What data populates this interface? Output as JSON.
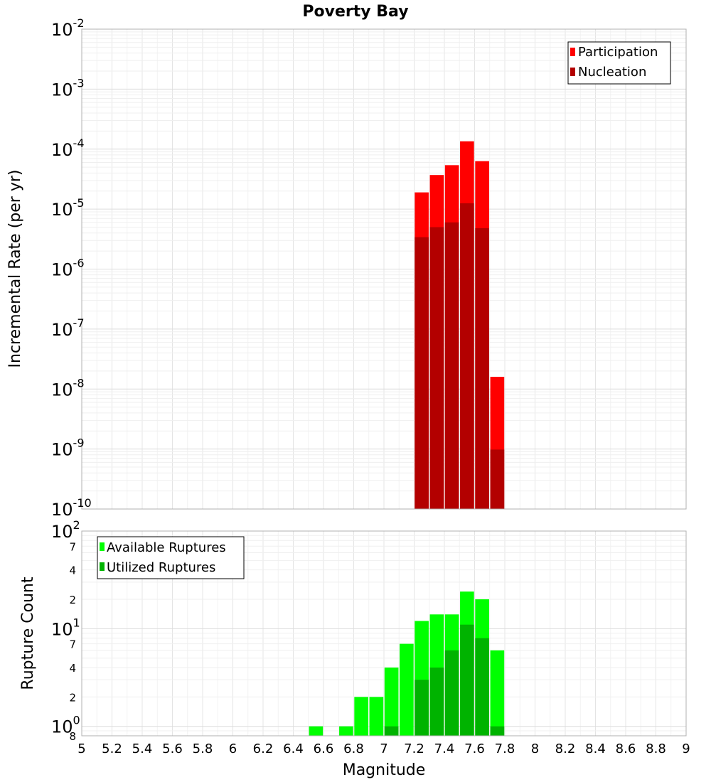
{
  "chart_data": [
    {
      "type": "bar",
      "title": "Poverty Bay",
      "xlabel": "",
      "ylabel": "Incremental Rate (per yr)",
      "xlim": [
        5,
        9
      ],
      "ylim": [
        1e-10,
        0.01
      ],
      "yscale": "log",
      "grid": true,
      "legend_position": "top-right",
      "colors": {
        "Participation": "#ff0000",
        "Nucleation": "#b30000"
      },
      "x": [
        7.25,
        7.35,
        7.45,
        7.55,
        7.65,
        7.75
      ],
      "series": [
        {
          "name": "Participation",
          "values": [
            1.9e-05,
            3.7e-05,
            5.4e-05,
            0.000135,
            6.3e-05,
            1.6e-08
          ]
        },
        {
          "name": "Nucleation",
          "values": [
            3.4e-06,
            5e-06,
            6e-06,
            1.25e-05,
            4.8e-06,
            9.8e-10
          ]
        }
      ],
      "y_ticks": [
        {
          "base": "10",
          "exp": "-2",
          "value": 0.01
        },
        {
          "base": "10",
          "exp": "-3",
          "value": 0.001
        },
        {
          "base": "10",
          "exp": "-4",
          "value": 0.0001
        },
        {
          "base": "10",
          "exp": "-5",
          "value": 1e-05
        },
        {
          "base": "10",
          "exp": "-6",
          "value": 1e-06
        },
        {
          "base": "10",
          "exp": "-7",
          "value": 1e-07
        },
        {
          "base": "10",
          "exp": "-8",
          "value": 1e-08
        },
        {
          "base": "10",
          "exp": "-9",
          "value": 1e-09
        },
        {
          "base": "10",
          "exp": "-10",
          "value": 1e-10
        }
      ]
    },
    {
      "type": "bar",
      "title": "",
      "xlabel": "Magnitude",
      "ylabel": "Rupture Count",
      "xlim": [
        5,
        9
      ],
      "ylim": [
        0.8,
        100
      ],
      "yscale": "log",
      "grid": true,
      "legend_position": "top-left",
      "colors": {
        "Available Ruptures": "#00ff00",
        "Utilized Ruptures": "#00b300"
      },
      "x": [
        6.55,
        6.75,
        6.85,
        6.95,
        7.05,
        7.15,
        7.25,
        7.35,
        7.45,
        7.55,
        7.65,
        7.75
      ],
      "series": [
        {
          "name": "Available Ruptures",
          "values": [
            1,
            1,
            2,
            2,
            4,
            7,
            12,
            14,
            14,
            24,
            20,
            6
          ]
        },
        {
          "name": "Utilized Ruptures",
          "values": [
            0,
            0,
            0,
            0,
            1,
            0,
            3,
            4,
            6,
            11,
            8,
            1
          ]
        }
      ],
      "y_ticks": [
        {
          "base": "10",
          "exp": "2",
          "value": 100
        },
        {
          "base": "10",
          "exp": "1",
          "value": 10
        },
        {
          "base": "10",
          "exp": "0",
          "value": 1
        }
      ],
      "y_minor_ticks": [
        {
          "label": "7",
          "value": 70
        },
        {
          "label": "4",
          "value": 40
        },
        {
          "label": "2",
          "value": 20
        },
        {
          "label": "7",
          "value": 7
        },
        {
          "label": "4",
          "value": 4
        },
        {
          "label": "2",
          "value": 2
        },
        {
          "label": "8",
          "value": 0.8
        }
      ],
      "x_ticks": [
        "5",
        "5.2",
        "5.4",
        "5.6",
        "5.8",
        "6",
        "6.2",
        "6.4",
        "6.6",
        "6.8",
        "7",
        "7.2",
        "7.4",
        "7.6",
        "7.8",
        "8",
        "8.2",
        "8.4",
        "8.6",
        "8.8",
        "9"
      ]
    }
  ]
}
